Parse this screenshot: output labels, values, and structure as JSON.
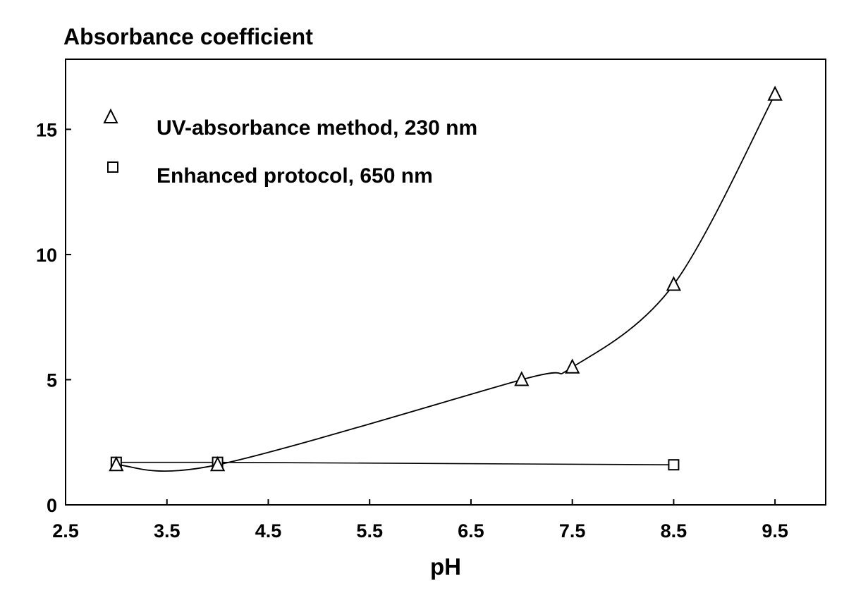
{
  "chart_data": {
    "type": "line",
    "title": "Absorbance coefficient",
    "xlabel": "pH",
    "ylabel": "",
    "xlim": [
      2.5,
      10.0
    ],
    "ylim": [
      0,
      17.8
    ],
    "xticks": [
      "2.5",
      "3.5",
      "4.5",
      "5.5",
      "6.5",
      "7.5",
      "8.5",
      "9.5"
    ],
    "xtick_values": [
      2.5,
      3.5,
      4.5,
      5.5,
      6.5,
      7.5,
      8.5,
      9.5
    ],
    "yticks": [
      "0",
      "5",
      "10",
      "15"
    ],
    "ytick_values": [
      0,
      5,
      10,
      15
    ],
    "grid": false,
    "legend_position": "top-left",
    "series": [
      {
        "name": "UV-absorbance method, 230 nm",
        "marker": "triangle",
        "line": "smooth-fit",
        "x": [
          3.0,
          4.0,
          7.0,
          7.5,
          8.5,
          9.5
        ],
        "y": [
          1.6,
          1.6,
          5.0,
          5.5,
          8.8,
          16.4
        ]
      },
      {
        "name": "Enhanced protocol, 650 nm",
        "marker": "square",
        "line": "straight",
        "x": [
          3.0,
          4.0,
          8.5
        ],
        "y": [
          1.7,
          1.7,
          1.6
        ]
      }
    ]
  }
}
